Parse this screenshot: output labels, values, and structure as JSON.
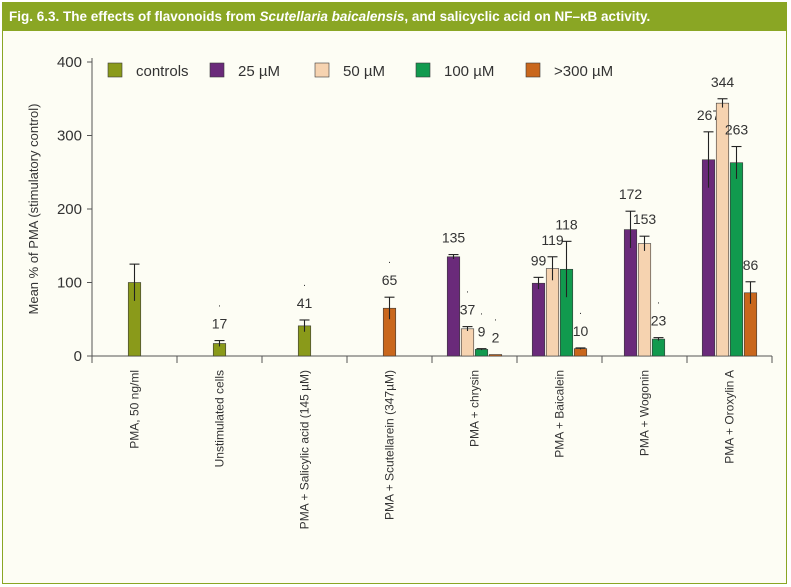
{
  "caption": {
    "prefix": "Fig. 6.3. The effects of flavonoids from ",
    "italic": "Scutellaria baicalensis",
    "suffix": ", and salicyclic acid on NF–κB activity."
  },
  "colors": {
    "frame": "#8aa624",
    "controls": "#8a9a1a",
    "25 µM": "#6a2a7a",
    "50 µM": "#f6d3b0",
    "100 µM": "#119a4e",
    ">300 µM": "#c9671c"
  },
  "chart_data": {
    "type": "bar",
    "title": "The effects of flavonoids from Scutellaria baicalensis, and salicyclic acid on NF–κB activity.",
    "ylabel": "Mean % of PMA (stimulatory control)",
    "xlabel": "",
    "ylim": [
      0,
      400
    ],
    "yticks": [
      0,
      100,
      200,
      300,
      400
    ],
    "legend": [
      "controls",
      "25 µM",
      "50 µM",
      "100 µM",
      ">300 µM"
    ],
    "legend_position": "top",
    "categories": [
      "PMA, 50 ng/ml",
      "Unstimulated cells",
      "PMA + Salicylic acid (145 µM)",
      "PMA + Scutellarein (347µM)",
      "PMA + chrysin",
      "PMA + Baicalein",
      "PMA + Wogonin",
      "PMA + Oroxylin A"
    ],
    "groups": [
      {
        "category": "PMA, 50 ng/ml",
        "bars": [
          {
            "series": "controls",
            "value": 100,
            "err": 25,
            "label": ""
          }
        ]
      },
      {
        "category": "Unstimulated cells",
        "bars": [
          {
            "series": "controls",
            "value": 17,
            "err": 4,
            "label": "17",
            "star": "."
          }
        ]
      },
      {
        "category": "PMA + Salicylic acid (145 µM)",
        "bars": [
          {
            "series": "controls",
            "value": 41,
            "err": 8,
            "label": "41",
            "star": "."
          }
        ]
      },
      {
        "category": "PMA + Scutellarein (347µM)",
        "bars": [
          {
            "series": ">300 µM",
            "value": 65,
            "err": 15,
            "label": "65",
            "star": "."
          }
        ]
      },
      {
        "category": "PMA + chrysin",
        "bars": [
          {
            "series": "25 µM",
            "value": 135,
            "err": 3,
            "label": "135"
          },
          {
            "series": "50 µM",
            "value": 37,
            "err": 3,
            "label": "37",
            "star": "."
          },
          {
            "series": "100 µM",
            "value": 9,
            "err": 1,
            "label": "9",
            "star": "."
          },
          {
            "series": ">300 µM",
            "value": 2,
            "err": 0,
            "label": "2",
            "star": "."
          }
        ]
      },
      {
        "category": "PMA + Baicalein",
        "bars": [
          {
            "series": "25 µM",
            "value": 99,
            "err": 8,
            "label": "99"
          },
          {
            "series": "50 µM",
            "value": 119,
            "err": 16,
            "label": "119"
          },
          {
            "series": "100 µM",
            "value": 118,
            "err": 38,
            "label": "118"
          },
          {
            "series": ">300 µM",
            "value": 10,
            "err": 1,
            "label": "10",
            "star": "."
          }
        ]
      },
      {
        "category": "PMA + Wogonin",
        "bars": [
          {
            "series": "25 µM",
            "value": 172,
            "err": 25,
            "label": "172"
          },
          {
            "series": "50 µM",
            "value": 153,
            "err": 10,
            "label": "153"
          },
          {
            "series": "100 µM",
            "value": 23,
            "err": 2,
            "label": "23",
            "star": "."
          }
        ]
      },
      {
        "category": "PMA + Oroxylin A",
        "bars": [
          {
            "series": "25 µM",
            "value": 267,
            "err": 38,
            "label": "267"
          },
          {
            "series": "50 µM",
            "value": 344,
            "err": 6,
            "label": "344"
          },
          {
            "series": "100 µM",
            "value": 263,
            "err": 22,
            "label": "263"
          },
          {
            "series": ">300 µM",
            "value": 86,
            "err": 15,
            "label": "86"
          }
        ]
      }
    ]
  }
}
